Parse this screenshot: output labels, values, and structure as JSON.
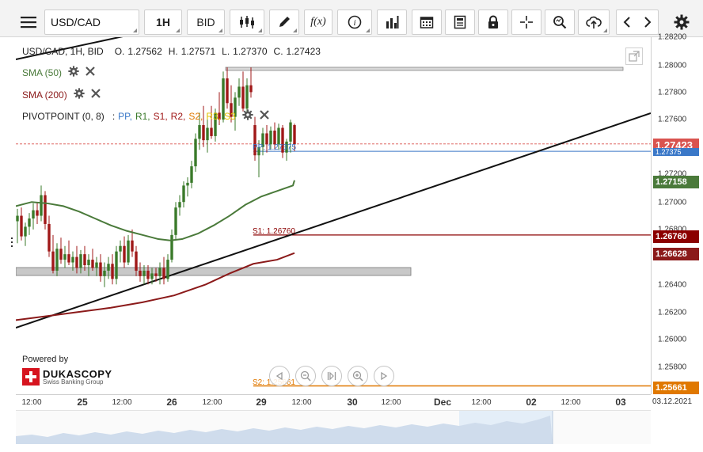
{
  "toolbar": {
    "menu_icon": "hamburger-menu-icon",
    "symbol": "USD/CAD",
    "timeframe": "1H",
    "price_type": "BID",
    "fx_label": "f(x)"
  },
  "legend": {
    "title": "USD/CAD, 1H, BID",
    "open_label": "O.",
    "open": "1.27562",
    "high_label": "H.",
    "high": "1.27571",
    "low_label": "L.",
    "low": "1.27370",
    "close_label": "C.",
    "close": "1.27423",
    "sma50": "SMA (50)",
    "sma200": "SMA (200)",
    "pivot_name": "PIVOTPOINT (0, 8)",
    "pivot_sep": ":",
    "pivot_pp": "PP,",
    "pivot_r1": "R1,",
    "pivot_s1": "S1,",
    "pivot_r2": "R2,",
    "pivot_s2": "S2,",
    "pivot_r3": "R3,",
    "pivot_s3": "S3"
  },
  "levels": {
    "pp_label": "PP: 1.27375",
    "s1_label": "S1: 1.26760",
    "s2_label": "S2: 1.25661"
  },
  "y_axis": {
    "ticks": [
      "1.28200",
      "1.28000",
      "1.27800",
      "1.27600",
      "1.27200",
      "1.27000",
      "1.26800",
      "1.26400",
      "1.26200",
      "1.26000",
      "1.25800"
    ],
    "badges": {
      "last": "1.27423",
      "pp": "1.27375",
      "sma50": "1.27158",
      "s1": "1.26760",
      "sma200": "1.26628",
      "s2": "1.25661"
    }
  },
  "x_axis": {
    "ticks": [
      "12:00",
      "25",
      "12:00",
      "26",
      "12:00",
      "29",
      "12:00",
      "30",
      "12:00",
      "Dec",
      "12:00",
      "02",
      "12:00",
      "03"
    ],
    "date": "03.12.2021"
  },
  "branding": {
    "powered_by": "Powered by",
    "name": "DUKASCOPY",
    "tagline": "Swiss Banking Group"
  },
  "colors": {
    "sma50": "#4a7a3a",
    "sma200": "#8b1a1a",
    "pp": "#3a78c8",
    "s1": "#8b0000",
    "s2": "#e07800",
    "r1": "#3a7a2a",
    "r3": "#e0c000",
    "s3": "#e0c000",
    "candle_up": "#3a7a2a",
    "candle_down": "#a01818",
    "last_price": "#d9534f"
  }
}
